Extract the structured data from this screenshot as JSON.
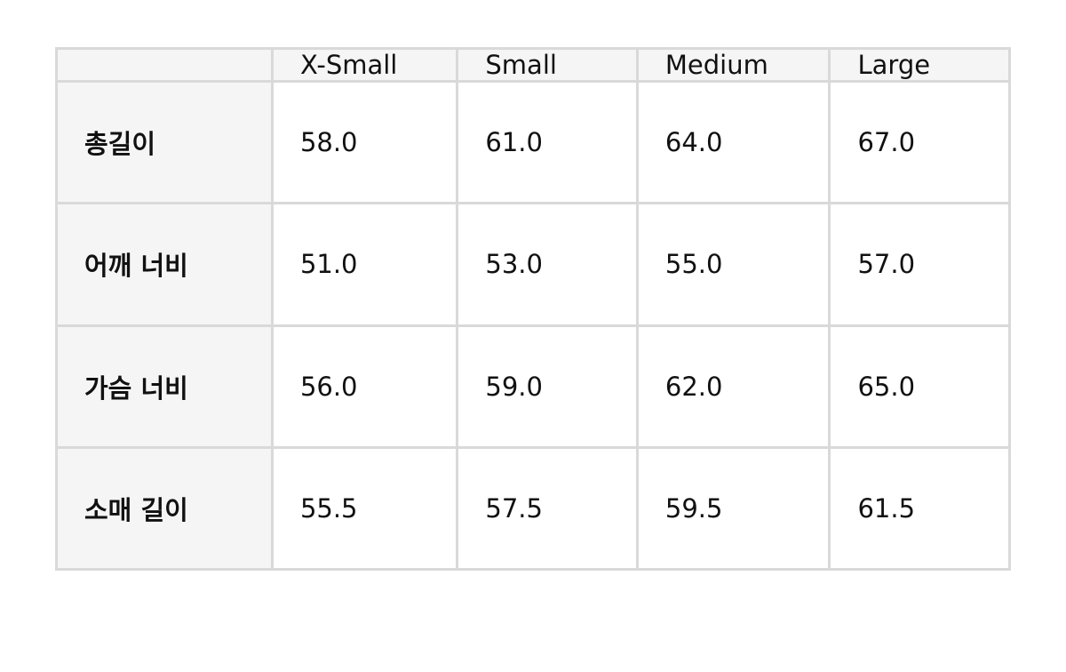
{
  "table": {
    "headers": [
      "",
      "X-Small",
      "Small",
      "Medium",
      "Large"
    ],
    "rows": [
      {
        "label": "총길이",
        "values": [
          "58.0",
          "61.0",
          "64.0",
          "67.0"
        ]
      },
      {
        "label": "어깨 너비",
        "values": [
          "51.0",
          "53.0",
          "55.0",
          "57.0"
        ]
      },
      {
        "label": "가슴 너비",
        "values": [
          "56.0",
          "59.0",
          "62.0",
          "65.0"
        ]
      },
      {
        "label": "소매 길이",
        "values": [
          "55.5",
          "57.5",
          "59.5",
          "61.5"
        ]
      }
    ]
  },
  "colors": {
    "border": "#d9d9d9",
    "header_bg": "#f5f5f5"
  }
}
